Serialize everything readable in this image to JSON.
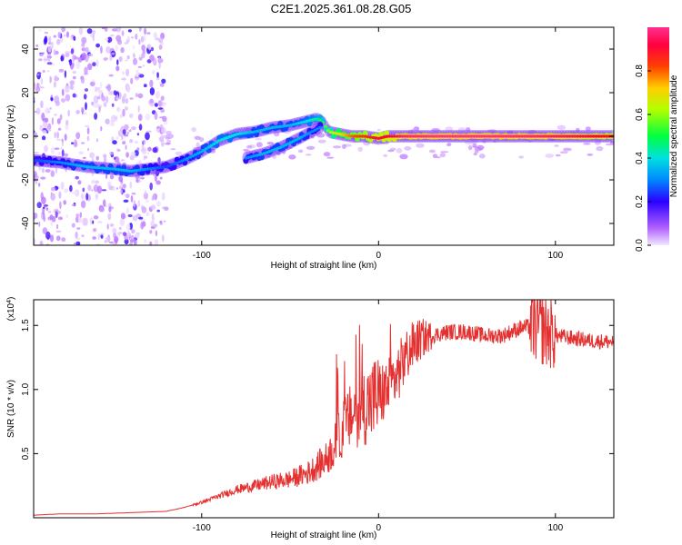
{
  "title": "C2E1.2025.361.08.28.G05",
  "chart_data": [
    {
      "type": "heatmap",
      "name": "spectrogram",
      "xlabel": "Height of straight line (km)",
      "ylabel": "Frequency (Hz)",
      "xlim": [
        -195,
        133
      ],
      "ylim": [
        -50,
        50
      ],
      "xticks": [
        -100,
        0,
        100
      ],
      "xtick_labels": [
        "-100",
        "0",
        "100"
      ],
      "yticks": [
        -40,
        -20,
        0,
        20,
        40
      ],
      "ytick_labels": [
        "-40",
        "-20",
        "0",
        "20",
        "40"
      ],
      "colorbar": {
        "label": "Normalized spectral amplitude",
        "range": [
          0,
          1
        ],
        "ticks": [
          0,
          0.2,
          0.4,
          0.6,
          0.8
        ],
        "tick_labels": [
          "0.0",
          "0.2",
          "0.4",
          "0.6",
          "0.8"
        ]
      },
      "ridge": {
        "x": [
          -195,
          -180,
          -165,
          -150,
          -140,
          -130,
          -120,
          -110,
          -100,
          -90,
          -80,
          -70,
          -60,
          -50,
          -40,
          -35,
          -32,
          -28,
          -22,
          -15,
          -8,
          0,
          5,
          10,
          15,
          30,
          60,
          90,
          110,
          133
        ],
        "y": [
          -11,
          -12,
          -14,
          -15,
          -16,
          -15,
          -14,
          -11,
          -7,
          -2,
          1,
          2,
          4,
          5,
          7,
          8,
          7,
          2,
          1,
          0,
          0,
          -1,
          0,
          0,
          0,
          0,
          0,
          0,
          0,
          0
        ],
        "amplitude": [
          0.25,
          0.3,
          0.35,
          0.35,
          0.35,
          0.3,
          0.25,
          0.3,
          0.35,
          0.4,
          0.4,
          0.35,
          0.35,
          0.35,
          0.4,
          0.45,
          0.5,
          0.6,
          0.7,
          0.8,
          0.85,
          0.9,
          0.92,
          0.95,
          0.98,
          1.0,
          1.0,
          0.98,
          0.95,
          0.9
        ]
      },
      "secondary_ridge": {
        "x": [
          -75,
          -65,
          -55,
          -45,
          -38,
          -33
        ],
        "y": [
          -10,
          -8,
          -5,
          -1,
          2,
          4
        ],
        "amplitude": [
          0.3,
          0.35,
          0.35,
          0.35,
          0.3,
          0.3
        ]
      }
    },
    {
      "type": "line",
      "name": "snr",
      "xlabel": "Height of straight line (km)",
      "ylabel": "SNR (10 * v/v)",
      "multiplier_label": "(x10",
      "multiplier_exp": "4",
      "multiplier_close": ")",
      "color": "#e53030",
      "xlim": [
        -195,
        133
      ],
      "ylim": [
        0.0,
        1.7
      ],
      "xticks": [
        -100,
        0,
        100
      ],
      "xtick_labels": [
        "-100",
        "0",
        "100"
      ],
      "yticks": [
        0.5,
        1.0,
        1.5
      ],
      "ytick_labels": [
        "0.5",
        "1.0",
        "1.5"
      ],
      "series": [
        {
          "name": "SNR",
          "x": [
            -195,
            -180,
            -160,
            -140,
            -120,
            -110,
            -100,
            -90,
            -80,
            -70,
            -60,
            -50,
            -40,
            -35,
            -30,
            -25,
            -20,
            -15,
            -10,
            -5,
            0,
            5,
            10,
            15,
            20,
            25,
            30,
            40,
            50,
            60,
            70,
            80,
            90,
            95,
            100,
            110,
            120,
            133
          ],
          "y": [
            0.02,
            0.03,
            0.03,
            0.04,
            0.05,
            0.08,
            0.12,
            0.17,
            0.22,
            0.25,
            0.28,
            0.3,
            0.35,
            0.4,
            0.45,
            0.55,
            0.7,
            0.8,
            0.85,
            0.9,
            0.95,
            1.0,
            1.1,
            1.25,
            1.35,
            1.4,
            1.42,
            1.45,
            1.45,
            1.42,
            1.42,
            1.48,
            1.5,
            1.45,
            1.42,
            1.4,
            1.38,
            1.37
          ]
        }
      ]
    }
  ]
}
